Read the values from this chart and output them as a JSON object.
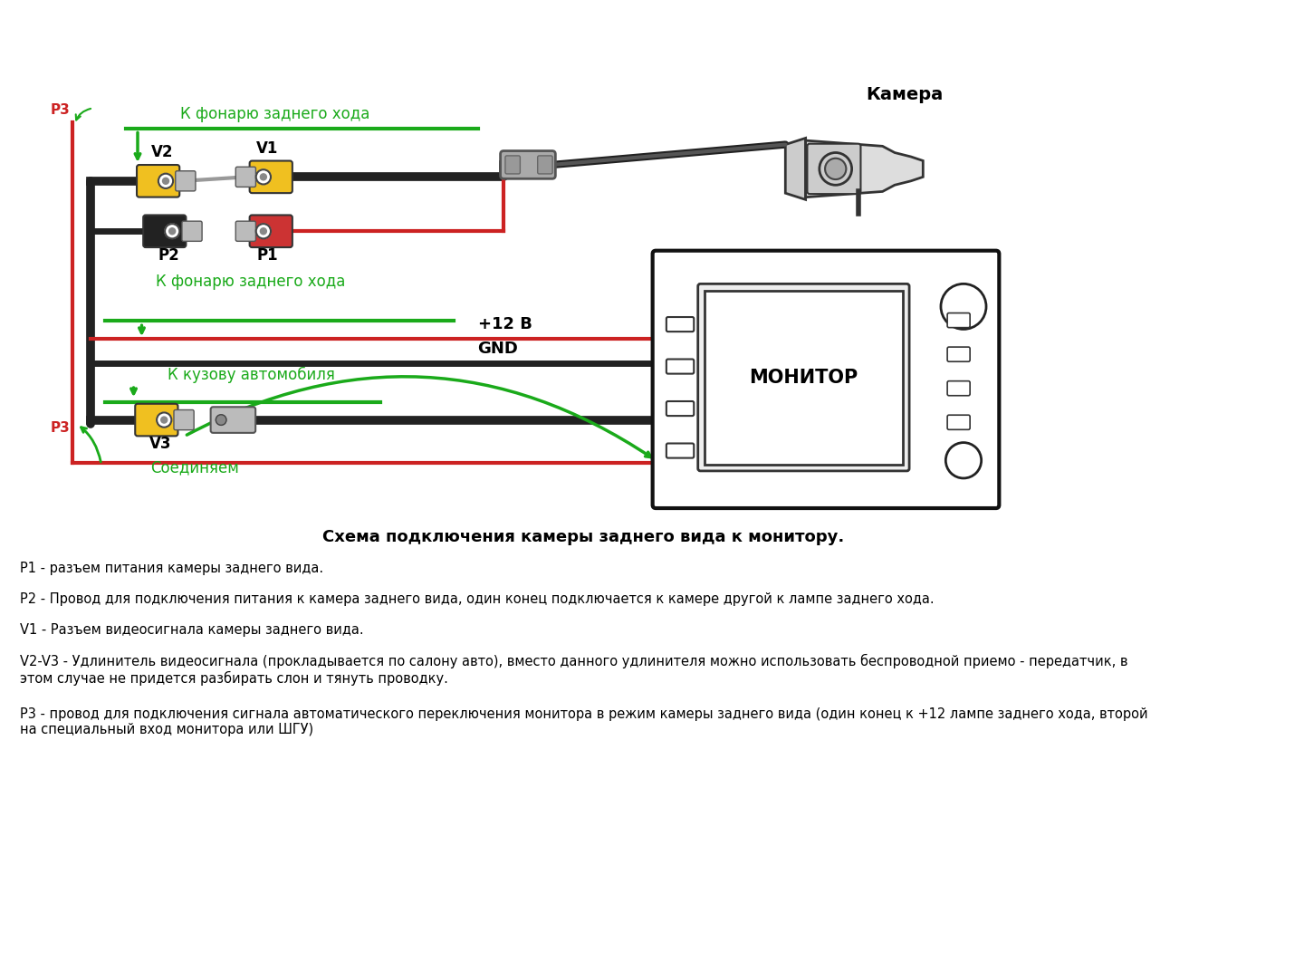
{
  "bg_color": "#ffffff",
  "title": "Схема подключения камеры заднего вида к монитору.",
  "labels": {
    "camera": "Камера",
    "monitor": "МОНИТОР",
    "k_fonary_top": "К фонарю заднего хода",
    "k_fonary_mid": "К фонарю заднего хода",
    "k_kuzovu": "К кузову автомобиля",
    "plus12": "+12 В",
    "gnd": "GND",
    "soedinyaem": "Соединяем",
    "v1": "V1",
    "v2": "V2",
    "v3": "V3",
    "p1": "P1",
    "p2": "P2",
    "p3_top": "P3",
    "p3_bot": "P3"
  },
  "desc_lines": [
    "P1 - разъем питания камеры заднего вида.",
    "P2 - Провод для подключения питания к камера заднего вида, один конец подключается к камере другой к лампе заднего хода.",
    "V1 - Разъем видеосигнала камеры заднего вида.",
    "V2-V3 - Удлинитель видеосигнала (прокладывается по салону авто), вместо данного удлинителя можно использовать беспроводной приемо - передатчик, в\nэтом случае не придется разбирать слон и тянуть проводку.",
    "Р3 - провод для подключения сигнала автоматического переключения монитора в режим камеры заднего вида (один конец к +12 лампе заднего хода, второй\nна специальный вход монитора или ШГУ)"
  ],
  "green": "#1aaa1a",
  "red": "#cc2222",
  "black": "#222222",
  "gray": "#888888",
  "yellow": "#f0c020",
  "darkgray": "#555555"
}
